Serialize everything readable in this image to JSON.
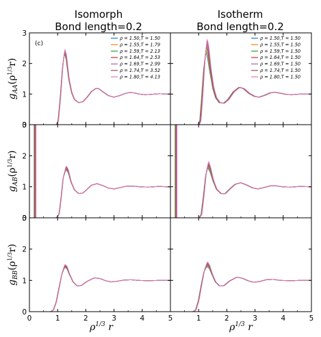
{
  "columns": [
    {
      "title_line1": "Isomorph",
      "title_line2": "Bond length=0.2"
    },
    {
      "title_line1": "Isotherm",
      "title_line2": "Bond length=0.2"
    }
  ],
  "rows": [
    {
      "ylabel_main": "g",
      "ylabel_sub": "AA",
      "ylabel_arg": "(ρ",
      "ylabel_exp": "1/3",
      "ylabel_end": "r)"
    },
    {
      "ylabel_main": "g",
      "ylabel_sub": "AB",
      "ylabel_arg": "(ρ",
      "ylabel_exp": "1/3",
      "ylabel_end": "r)"
    },
    {
      "ylabel_main": "g",
      "ylabel_sub": "BB",
      "ylabel_arg": "(ρ",
      "ylabel_exp": "1/3",
      "ylabel_end": "r)"
    }
  ],
  "xlabel": {
    "main": "ρ",
    "exp": "1/3",
    "end": " r"
  },
  "annotation": "(c)",
  "chart_data": {
    "type": "line",
    "layout": "3x2 grid of subplots sharing axes",
    "xlim": [
      0,
      5
    ],
    "ylim": [
      0,
      3
    ],
    "xticks": [
      "0",
      "1",
      "2",
      "3",
      "4",
      "5"
    ],
    "yticks": [
      "0",
      "1",
      "2",
      "3"
    ],
    "legend_placement": "top-right",
    "colors": [
      "#1f77b4",
      "#ff7f0e",
      "#2ca02c",
      "#d62728",
      "#9467bd",
      "#8c564b",
      "#e377c2"
    ],
    "legends": {
      "isomorph": [
        "ρ = 1.50,T = 1.50",
        "ρ = 1.55,T = 1.79",
        "ρ = 1.59,T = 2.13",
        "ρ = 1.64,T = 2.53",
        "ρ = 1.69,T = 2.99",
        "ρ = 1.74,T = 3.52",
        "ρ = 1.80,T = 4.13"
      ],
      "isotherm": [
        "ρ = 1.50,T = 1.50",
        "ρ = 1.55,T = 1.50",
        "ρ = 1.59,T = 1.50",
        "ρ = 1.64,T = 1.50",
        "ρ = 1.69,T = 1.50",
        "ρ = 1.74,T = 1.50",
        "ρ = 1.80,T = 1.50"
      ]
    },
    "panels": [
      {
        "row": "AA",
        "col": "isomorph",
        "curve": [
          [
            0.95,
            0
          ],
          [
            1.02,
            0.1
          ],
          [
            1.1,
            0.9
          ],
          [
            1.18,
            1.9
          ],
          [
            1.25,
            2.4
          ],
          [
            1.31,
            2.2
          ],
          [
            1.4,
            1.5
          ],
          [
            1.5,
            1.05
          ],
          [
            1.6,
            0.82
          ],
          [
            1.75,
            0.72
          ],
          [
            1.9,
            0.75
          ],
          [
            2.05,
            0.9
          ],
          [
            2.2,
            1.08
          ],
          [
            2.35,
            1.18
          ],
          [
            2.45,
            1.18
          ],
          [
            2.6,
            1.08
          ],
          [
            2.8,
            0.95
          ],
          [
            3.0,
            0.9
          ],
          [
            3.2,
            0.95
          ],
          [
            3.4,
            1.02
          ],
          [
            3.55,
            1.05
          ],
          [
            3.7,
            1.04
          ],
          [
            3.9,
            1.0
          ],
          [
            4.1,
            0.98
          ],
          [
            4.3,
            0.99
          ],
          [
            4.6,
            1.01
          ],
          [
            4.85,
            1.0
          ]
        ],
        "spread": 0.04,
        "peak": 2.45,
        "spike_x": null
      },
      {
        "row": "AA",
        "col": "isotherm",
        "curve": [
          [
            1.0,
            0
          ],
          [
            1.06,
            0.1
          ],
          [
            1.12,
            0.8
          ],
          [
            1.2,
            1.9
          ],
          [
            1.28,
            2.6
          ],
          [
            1.34,
            2.4
          ],
          [
            1.42,
            1.8
          ],
          [
            1.52,
            1.2
          ],
          [
            1.62,
            0.88
          ],
          [
            1.75,
            0.72
          ],
          [
            1.9,
            0.7
          ],
          [
            2.05,
            0.82
          ],
          [
            2.25,
            1.08
          ],
          [
            2.45,
            1.22
          ],
          [
            2.6,
            1.18
          ],
          [
            2.8,
            1.02
          ],
          [
            3.0,
            0.92
          ],
          [
            3.15,
            0.9
          ],
          [
            3.35,
            0.96
          ],
          [
            3.55,
            1.04
          ],
          [
            3.7,
            1.06
          ],
          [
            3.9,
            1.03
          ],
          [
            4.1,
            0.99
          ],
          [
            4.3,
            0.98
          ],
          [
            4.6,
            1.0
          ],
          [
            4.95,
            1.0
          ]
        ],
        "spread": 0.1,
        "peak": 2.85,
        "spike_x": null
      },
      {
        "row": "AB",
        "col": "isomorph",
        "curve": [
          [
            0.95,
            0
          ],
          [
            1.05,
            0.1
          ],
          [
            1.12,
            0.6
          ],
          [
            1.2,
            1.3
          ],
          [
            1.3,
            1.62
          ],
          [
            1.38,
            1.5
          ],
          [
            1.48,
            1.15
          ],
          [
            1.6,
            0.9
          ],
          [
            1.75,
            0.78
          ],
          [
            1.9,
            0.8
          ],
          [
            2.05,
            0.92
          ],
          [
            2.2,
            1.05
          ],
          [
            2.4,
            1.1
          ],
          [
            2.6,
            1.04
          ],
          [
            2.8,
            0.96
          ],
          [
            3.0,
            0.93
          ],
          [
            3.2,
            0.97
          ],
          [
            3.45,
            1.02
          ],
          [
            3.7,
            1.02
          ],
          [
            3.9,
            1.0
          ],
          [
            4.2,
            0.99
          ],
          [
            4.6,
            1.01
          ],
          [
            4.85,
            1.0
          ]
        ],
        "spread": 0.03,
        "peak": 1.68,
        "spike_x": 0.2
      },
      {
        "row": "AB",
        "col": "isotherm",
        "curve": [
          [
            1.02,
            0
          ],
          [
            1.1,
            0.1
          ],
          [
            1.18,
            0.7
          ],
          [
            1.26,
            1.4
          ],
          [
            1.34,
            1.72
          ],
          [
            1.42,
            1.55
          ],
          [
            1.52,
            1.2
          ],
          [
            1.64,
            0.92
          ],
          [
            1.8,
            0.78
          ],
          [
            1.95,
            0.78
          ],
          [
            2.1,
            0.92
          ],
          [
            2.3,
            1.08
          ],
          [
            2.5,
            1.13
          ],
          [
            2.7,
            1.06
          ],
          [
            2.9,
            0.97
          ],
          [
            3.1,
            0.93
          ],
          [
            3.3,
            0.97
          ],
          [
            3.55,
            1.03
          ],
          [
            3.75,
            1.03
          ],
          [
            3.95,
            1.0
          ],
          [
            4.25,
            0.99
          ],
          [
            4.6,
            1.01
          ],
          [
            4.95,
            1.0
          ]
        ],
        "spread": 0.06,
        "peak": 1.8,
        "spike_x": 0.2
      },
      {
        "row": "BB",
        "col": "isomorph",
        "curve": [
          [
            0.75,
            0
          ],
          [
            0.85,
            0.05
          ],
          [
            0.95,
            0.3
          ],
          [
            1.05,
            0.75
          ],
          [
            1.15,
            1.2
          ],
          [
            1.25,
            1.46
          ],
          [
            1.33,
            1.42
          ],
          [
            1.42,
            1.2
          ],
          [
            1.55,
            0.95
          ],
          [
            1.7,
            0.82
          ],
          [
            1.85,
            0.84
          ],
          [
            2.05,
            0.97
          ],
          [
            2.3,
            1.08
          ],
          [
            2.5,
            1.06
          ],
          [
            2.7,
            0.99
          ],
          [
            2.9,
            0.95
          ],
          [
            3.1,
            0.97
          ],
          [
            3.35,
            1.01
          ],
          [
            3.6,
            1.02
          ],
          [
            3.85,
            1.0
          ],
          [
            4.2,
            0.99
          ],
          [
            4.6,
            1.0
          ],
          [
            4.85,
            1.0
          ]
        ],
        "spread": 0.03,
        "peak": 1.5,
        "spike_x": null
      },
      {
        "row": "BB",
        "col": "isotherm",
        "curve": [
          [
            0.8,
            0
          ],
          [
            0.9,
            0.05
          ],
          [
            1.0,
            0.35
          ],
          [
            1.1,
            0.85
          ],
          [
            1.2,
            1.3
          ],
          [
            1.3,
            1.52
          ],
          [
            1.38,
            1.45
          ],
          [
            1.48,
            1.2
          ],
          [
            1.6,
            0.95
          ],
          [
            1.75,
            0.82
          ],
          [
            1.9,
            0.83
          ],
          [
            2.1,
            0.98
          ],
          [
            2.35,
            1.1
          ],
          [
            2.55,
            1.07
          ],
          [
            2.75,
            0.99
          ],
          [
            2.95,
            0.94
          ],
          [
            3.15,
            0.96
          ],
          [
            3.4,
            1.02
          ],
          [
            3.65,
            1.03
          ],
          [
            3.9,
            1.0
          ],
          [
            4.25,
            0.99
          ],
          [
            4.6,
            1.0
          ],
          [
            4.95,
            1.0
          ]
        ],
        "spread": 0.05,
        "peak": 1.57,
        "spike_x": null
      }
    ]
  }
}
